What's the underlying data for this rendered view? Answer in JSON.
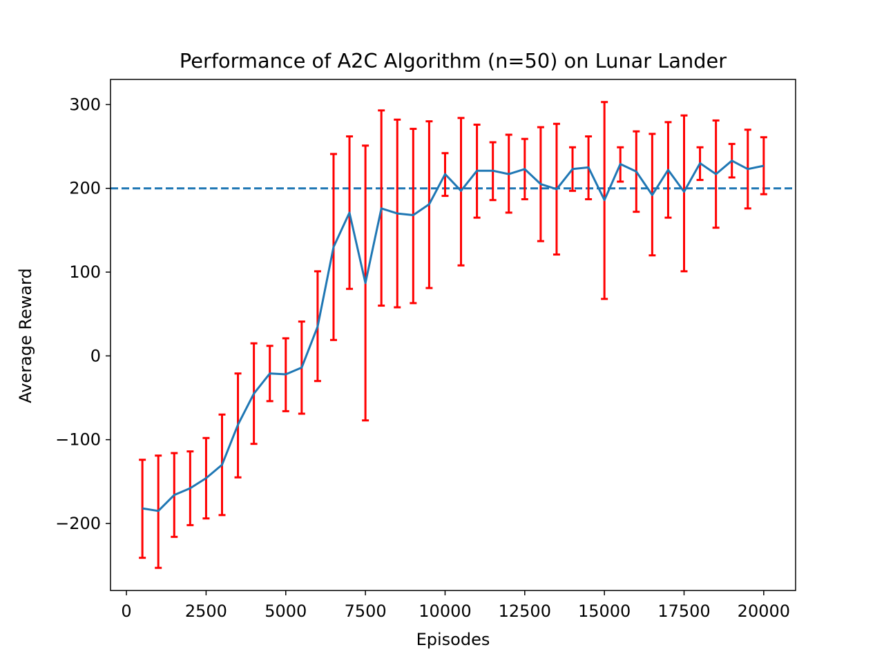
{
  "chart_data": {
    "type": "line",
    "title": "Performance of A2C Algorithm (n=50) on Lunar Lander",
    "xlabel": "Episodes",
    "ylabel": "Average Reward",
    "xlim": [
      -500,
      21000
    ],
    "ylim": [
      -280,
      330
    ],
    "xticks": [
      0,
      2500,
      5000,
      7500,
      10000,
      12500,
      15000,
      17500,
      20000
    ],
    "xtick_labels": [
      "0",
      "2500",
      "5000",
      "7500",
      "10000",
      "12500",
      "15000",
      "17500",
      "20000"
    ],
    "yticks": [
      -200,
      -100,
      0,
      100,
      200,
      300
    ],
    "ytick_labels": [
      "−200",
      "−100",
      "0",
      "100",
      "200",
      "300"
    ],
    "grid": false,
    "series": [
      {
        "color": "#1f77b4",
        "errorbar_color": "#ff0000",
        "x": [
          500,
          1000,
          1500,
          2000,
          2500,
          3000,
          3500,
          4000,
          4500,
          5000,
          5500,
          6000,
          6500,
          7000,
          7500,
          8000,
          8500,
          9000,
          9500,
          10000,
          10500,
          11000,
          11500,
          12000,
          12500,
          13000,
          13500,
          14000,
          14500,
          15000,
          15500,
          16000,
          16500,
          17000,
          17500,
          18000,
          18500,
          19000,
          19500,
          20000
        ],
        "y": [
          -182,
          -185,
          -166,
          -158,
          -146,
          -130,
          -82,
          -45,
          -21,
          -22,
          -14,
          35,
          130,
          171,
          87,
          176,
          170,
          168,
          181,
          217,
          197,
          221,
          221,
          217,
          223,
          205,
          199,
          223,
          225,
          186,
          229,
          220,
          192,
          222,
          196,
          230,
          217,
          233,
          223,
          227
        ],
        "err_low": [
          -241,
          -253,
          -216,
          -202,
          -194,
          -190,
          -145,
          -105,
          -54,
          -66,
          -69,
          -30,
          19,
          80,
          -77,
          60,
          58,
          63,
          81,
          191,
          108,
          165,
          186,
          171,
          187,
          137,
          121,
          197,
          187,
          68,
          208,
          172,
          120,
          165,
          101,
          210,
          153,
          213,
          176,
          193
        ],
        "err_high": [
          -124,
          -119,
          -116,
          -114,
          -98,
          -70,
          -21,
          15,
          12,
          21,
          41,
          101,
          241,
          262,
          251,
          293,
          282,
          271,
          280,
          242,
          284,
          276,
          255,
          264,
          259,
          273,
          277,
          249,
          262,
          303,
          249,
          268,
          265,
          279,
          287,
          249,
          281,
          253,
          270,
          261
        ]
      }
    ],
    "hlines": [
      {
        "y": 200,
        "color": "#1f77b4",
        "style": "dashed"
      }
    ]
  }
}
